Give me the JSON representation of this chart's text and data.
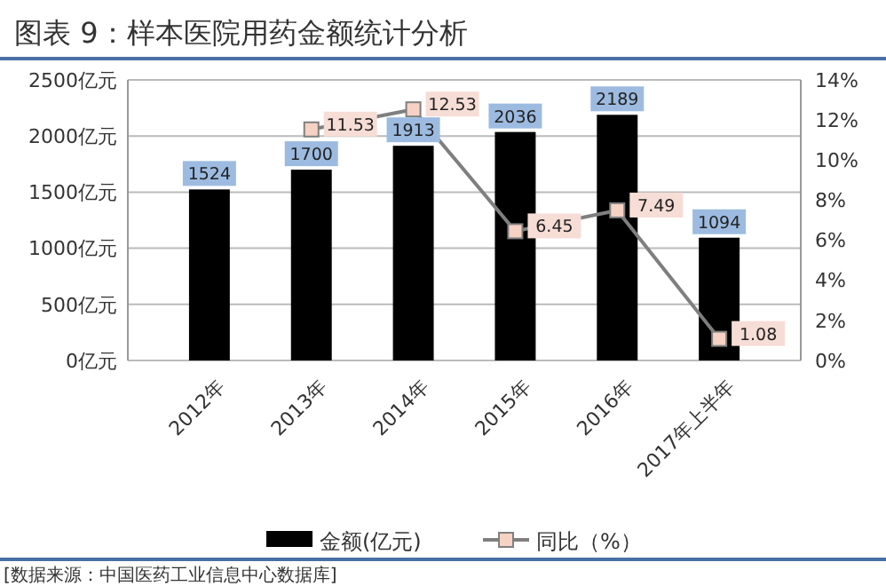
{
  "chart_data": {
    "type": "bar",
    "title": "图表 9：样本医院用药金额统计分析",
    "categories": [
      "2012年",
      "2013年",
      "2014年",
      "2015年",
      "2016年",
      "2017年上半年"
    ],
    "series": [
      {
        "name": "金额(亿元)",
        "color": "#000000",
        "values": [
          1524,
          1700,
          1913,
          2036,
          2189,
          1094
        ]
      },
      {
        "name": "同比（%）",
        "type": "line",
        "axis": "y2",
        "color": "#7f7f7f",
        "marker": "square",
        "values": [
          null,
          11.53,
          12.53,
          6.45,
          7.49,
          1.08
        ]
      }
    ],
    "ylim": [
      0,
      2500
    ],
    "yticks": [
      {
        "value": 0,
        "label": "0亿元"
      },
      {
        "value": 500,
        "label": "500亿元"
      },
      {
        "value": 1000,
        "label": "1000亿元"
      },
      {
        "value": 1500,
        "label": "1500亿元"
      },
      {
        "value": 2000,
        "label": "2000亿元"
      },
      {
        "value": 2500,
        "label": "2500亿元"
      }
    ],
    "y2lim": [
      0,
      14
    ],
    "y2ticks": [
      {
        "value": 0,
        "label": "0%"
      },
      {
        "value": 2,
        "label": "2%"
      },
      {
        "value": 4,
        "label": "4%"
      },
      {
        "value": 6,
        "label": "6%"
      },
      {
        "value": 8,
        "label": "8%"
      },
      {
        "value": 10,
        "label": "10%"
      },
      {
        "value": 12,
        "label": "12%"
      },
      {
        "value": 14,
        "label": "14%"
      }
    ],
    "grid": "y",
    "legend": "bottom",
    "data_labels": true,
    "annotations": [
      "[数据来源：中国医药工业信息中心数据库]"
    ]
  }
}
